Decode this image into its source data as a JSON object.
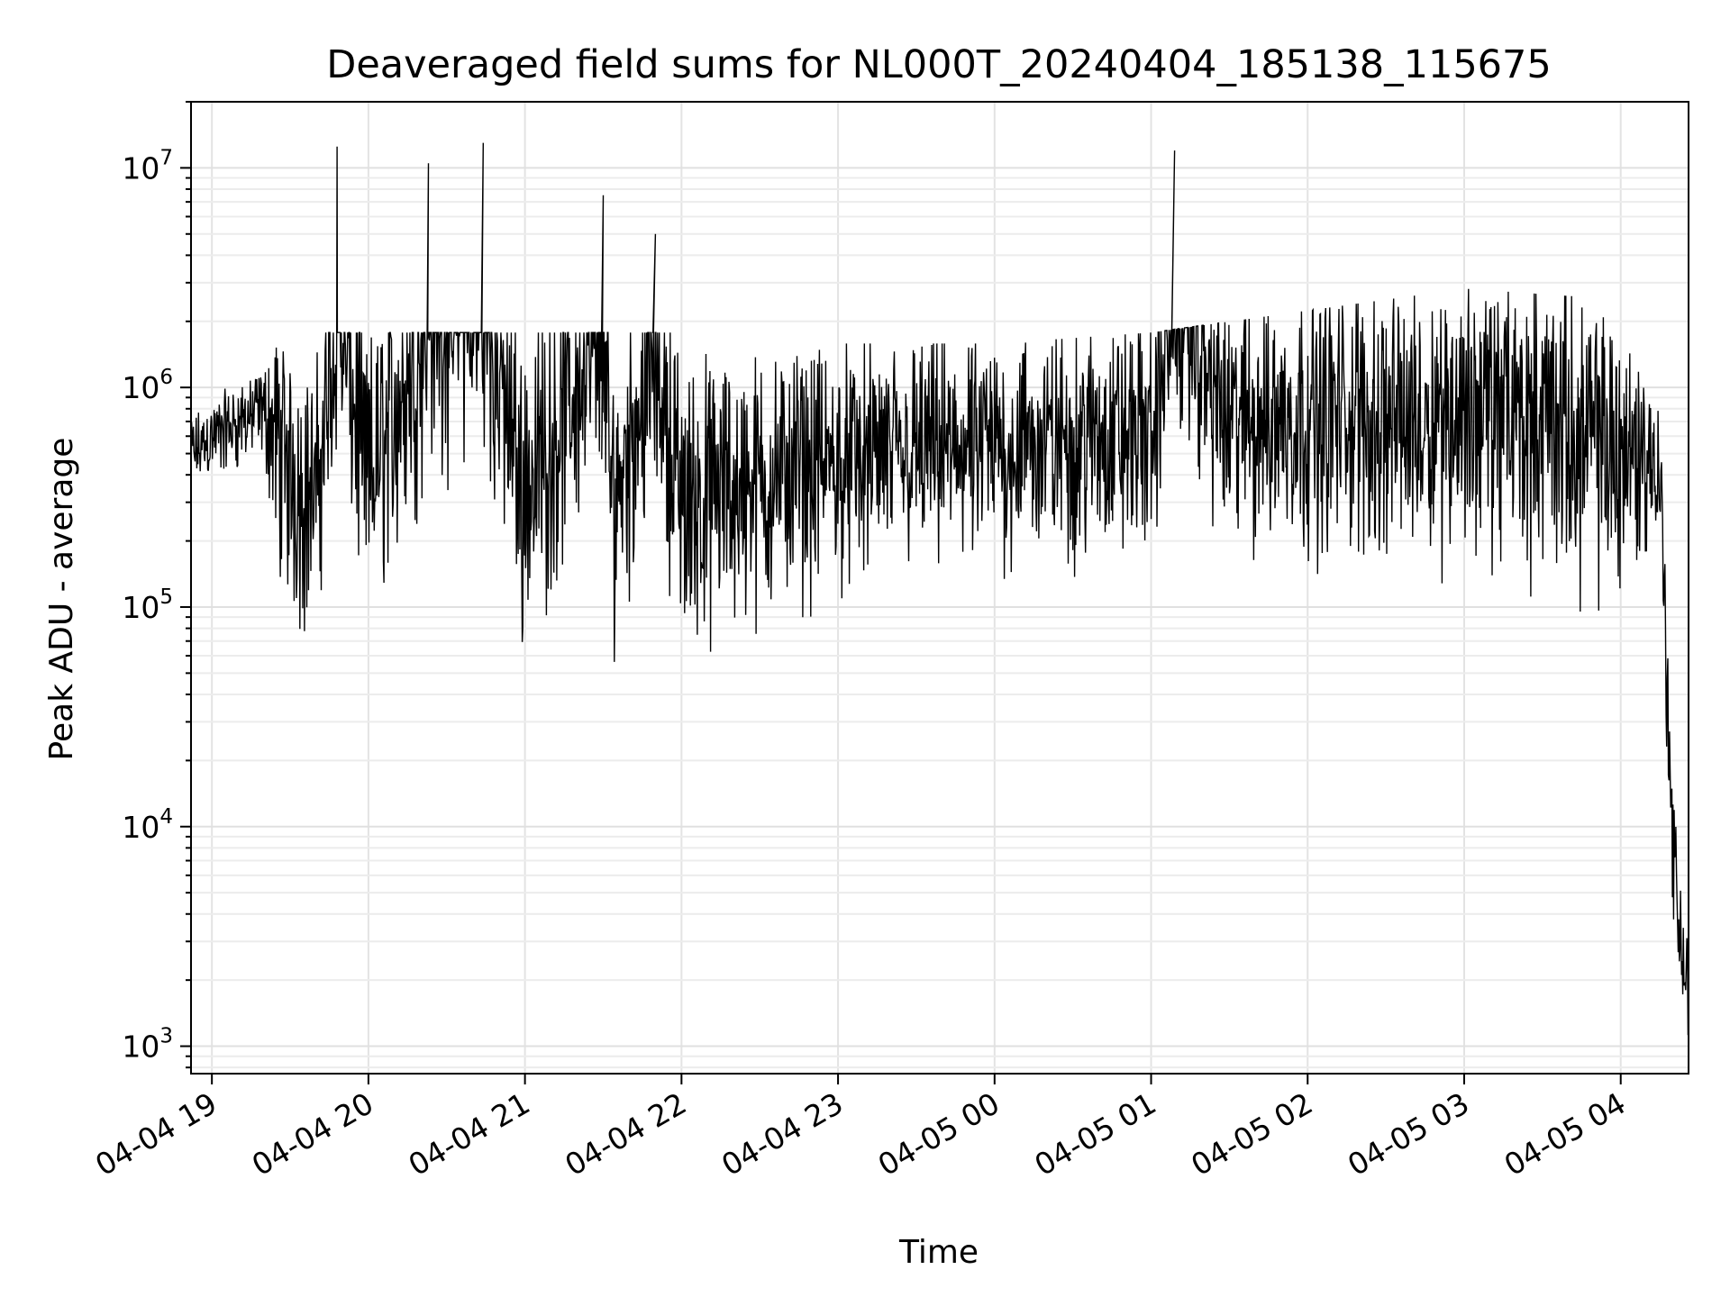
{
  "chart_data": {
    "type": "line",
    "title": "Deaveraged field sums for NL000T_20240404_185138_115675",
    "xlabel": "Time",
    "ylabel": "Peak ADU - average",
    "yscale": "log",
    "ylim": [
      750,
      20000000
    ],
    "xlim": [
      "2024-04-04 18:52",
      "2024-04-05 04:26"
    ],
    "grid": true,
    "x_ticks": [
      "04-04 19",
      "04-04 20",
      "04-04 21",
      "04-04 22",
      "04-04 23",
      "04-05 00",
      "04-05 01",
      "04-05 02",
      "04-05 03",
      "04-05 04"
    ],
    "y_ticks": [
      {
        "base": "10",
        "exp": "3"
      },
      {
        "base": "10",
        "exp": "4"
      },
      {
        "base": "10",
        "exp": "5"
      },
      {
        "base": "10",
        "exp": "6"
      },
      {
        "base": "10",
        "exp": "7"
      }
    ],
    "line_color": "#000000",
    "series": [
      {
        "x": [
          "2024-04-04 18:52",
          "2024-04-04 19:00",
          "2024-04-04 19:10",
          "2024-04-04 19:20",
          "2024-04-04 19:25",
          "2024-04-04 19:30",
          "2024-04-04 19:40",
          "2024-04-04 19:48",
          "2024-04-04 20:00",
          "2024-04-04 20:23",
          "2024-04-04 20:44",
          "2024-04-04 21:00",
          "2024-04-04 21:30",
          "2024-04-04 21:33",
          "2024-04-04 21:50",
          "2024-04-04 22:00",
          "2024-04-04 22:30",
          "2024-04-04 23:00",
          "2024-04-04 23:30",
          "2024-04-05 00:00",
          "2024-04-05 00:30",
          "2024-04-05 01:00",
          "2024-04-05 01:09",
          "2024-04-05 01:30",
          "2024-04-05 02:00",
          "2024-04-05 02:30",
          "2024-04-05 03:00",
          "2024-04-05 03:30",
          "2024-04-05 03:50",
          "2024-04-05 04:05",
          "2024-04-05 04:15",
          "2024-04-05 04:20",
          "2024-04-05 04:26"
        ],
        "y": [
          400000,
          550000,
          700000,
          900000,
          600000,
          300000,
          200000,
          12500000,
          300000,
          10500000,
          13000000,
          250000,
          7500000,
          200000,
          5000000,
          200000,
          300000,
          400000,
          500000,
          500000,
          600000,
          700000,
          12000000,
          800000,
          900000,
          800000,
          900000,
          800000,
          500000,
          450000,
          400000,
          5000,
          1100
        ]
      }
    ]
  }
}
